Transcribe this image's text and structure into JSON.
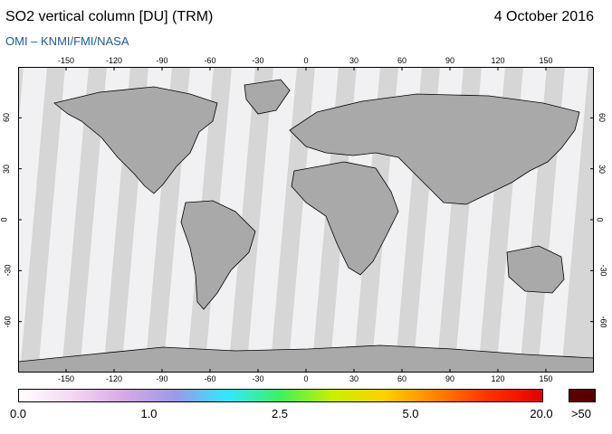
{
  "header": {
    "title": "SO2 vertical column [DU] (TRM)",
    "date": "4 October 2016",
    "credit": "OMI  –  KNMI/FMI/NASA"
  },
  "map": {
    "projection": "plate-carree",
    "background_color": "#d6d6d6",
    "orbit_swath_color": "#f6f4f8",
    "land_shade_color": "#a9a9a9",
    "coastline_color": "#000000",
    "lon_ticks": [
      "-150",
      "-120",
      "-90",
      "-60",
      "-30",
      "0",
      "30",
      "60",
      "90",
      "120",
      "150"
    ],
    "lon_values": [
      -150,
      -120,
      -90,
      -60,
      -30,
      0,
      30,
      60,
      90,
      120,
      150
    ],
    "lat_ticks": [
      "60",
      "30",
      "0",
      "-30",
      "-60"
    ],
    "lat_values": [
      60,
      30,
      0,
      -30,
      -60
    ],
    "lon_range": [
      -180,
      180
    ],
    "lat_range": [
      -90,
      90
    ]
  },
  "colorbar": {
    "labels": [
      "0.0",
      "1.0",
      "2.5",
      "5.0",
      "20.0"
    ],
    "stops": [
      0.0,
      0.25,
      0.5,
      0.75,
      1.0
    ],
    "overflow_label": ">50",
    "overflow_color": "#5a0000",
    "colors": [
      "#ffffff",
      "#f4d8f4",
      "#d8a8e8",
      "#9a9ae6",
      "#30e8ff",
      "#40f060",
      "#c8f000",
      "#ffd000",
      "#ff8000",
      "#ff3000",
      "#e00000"
    ]
  }
}
